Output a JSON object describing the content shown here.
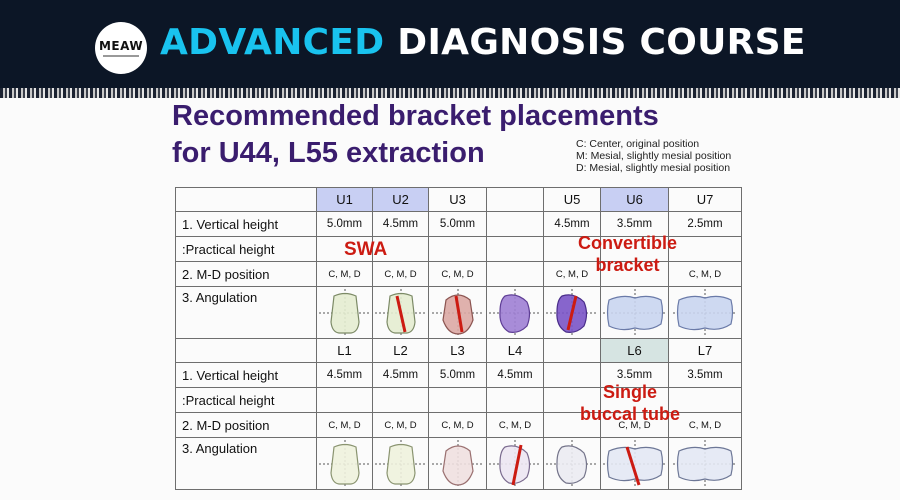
{
  "banner": {
    "logo": "MEAW",
    "title_accent": "ADVANCED",
    "title_rest": "DIAGNOSIS COURSE"
  },
  "slide": {
    "title": "Recommended bracket placements\nfor U44, L55 extraction",
    "legend": [
      "C: Center, original position",
      "M: Mesial, slightly mesial position",
      "D: Mesial, slightly mesial position"
    ]
  },
  "row_labels": {
    "vertical_height": "1. Vertical height",
    "practical_height": ":Practical height",
    "md_position": "2. M-D position",
    "angulation": "3. Angulation"
  },
  "upper": {
    "headers": [
      "U1",
      "U2",
      "U3",
      "",
      "U5",
      "U6",
      "U7"
    ],
    "vertical_height": [
      "5.0mm",
      "4.5mm",
      "5.0mm",
      "",
      "4.5mm",
      "3.5mm",
      "2.5mm"
    ],
    "md_position": [
      "C, M, D",
      "C, M, D",
      "C, M, D",
      "",
      "C, M, D",
      "",
      "C, M, D"
    ]
  },
  "lower": {
    "headers": [
      "L1",
      "L2",
      "L3",
      "L4",
      "",
      "L6",
      "L7"
    ],
    "vertical_height": [
      "4.5mm",
      "4.5mm",
      "5.0mm",
      "4.5mm",
      "",
      "3.5mm",
      "3.5mm"
    ],
    "md_position": [
      "C, M, D",
      "C, M, D",
      "C, M, D",
      "C, M, D",
      "",
      "C, M, D",
      "C, M, D"
    ]
  },
  "annotations": {
    "swa": "SWA",
    "convertible": "Convertible\nbracket",
    "single_tube": "Single\nbuccal tube"
  },
  "colors": {
    "banner_bg": "#0c1626",
    "accent": "#19c3ef",
    "title": "#3a1d6e",
    "annotation_red": "#cc1b12",
    "upper_header_highlight": "#c8cff3",
    "lower_header_highlight": "#d6e4e2"
  },
  "teeth": {
    "upper": [
      {
        "tooth": "U1",
        "shape": "incisor",
        "fill": "#e4ecd0",
        "stroke": "#7c8a66",
        "bracket_line": false
      },
      {
        "tooth": "U2",
        "shape": "incisor",
        "fill": "#e4ecd0",
        "stroke": "#7c8a66",
        "bracket_line": true
      },
      {
        "tooth": "U3",
        "shape": "canine",
        "fill": "#dba9a4",
        "stroke": "#8b5450",
        "bracket_line": true
      },
      {
        "tooth": "U4",
        "shape": "premolar",
        "fill": "#9f7fd4",
        "stroke": "#5e3d95",
        "bracket_line": false
      },
      {
        "tooth": "U5",
        "shape": "premolar",
        "fill": "#7a54c6",
        "stroke": "#4a2d8a",
        "bracket_line": true
      },
      {
        "tooth": "U6",
        "shape": "molar",
        "fill": "#c9d5ef",
        "stroke": "#6a7aa8",
        "bracket_line": false
      },
      {
        "tooth": "U7",
        "shape": "molar",
        "fill": "#c9d5ef",
        "stroke": "#6a7aa8",
        "bracket_line": false
      }
    ],
    "lower": [
      {
        "tooth": "L1",
        "shape": "incisor",
        "fill": "#eef2dd",
        "stroke": "#8a9470",
        "bracket_line": false
      },
      {
        "tooth": "L2",
        "shape": "incisor",
        "fill": "#eef2dd",
        "stroke": "#8a9470",
        "bracket_line": false
      },
      {
        "tooth": "L3",
        "shape": "canine",
        "fill": "#efe0e0",
        "stroke": "#9a7070",
        "bracket_line": false
      },
      {
        "tooth": "L4",
        "shape": "premolar",
        "fill": "#ece6f2",
        "stroke": "#7a6a8e",
        "bracket_line": true
      },
      {
        "tooth": "L5",
        "shape": "premolar",
        "fill": "#ebebf2",
        "stroke": "#74748a",
        "bracket_line": false
      },
      {
        "tooth": "L6",
        "shape": "molar",
        "fill": "#e3e8f4",
        "stroke": "#6d7796",
        "bracket_line": true
      },
      {
        "tooth": "L7",
        "shape": "molar",
        "fill": "#e3e8f4",
        "stroke": "#6d7796",
        "bracket_line": false
      }
    ]
  }
}
